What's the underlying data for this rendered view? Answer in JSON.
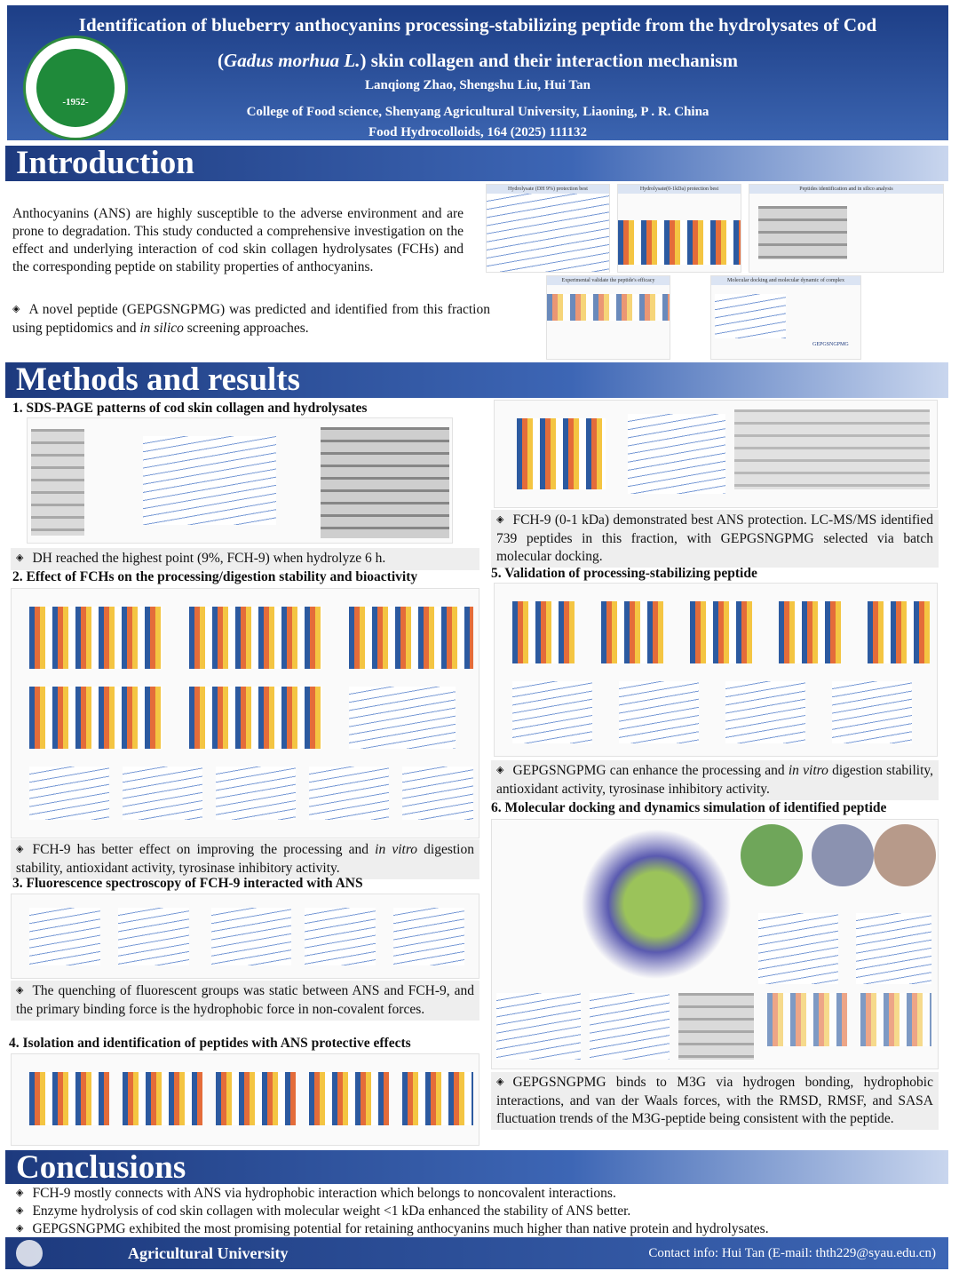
{
  "header": {
    "title_line1": "Identification of blueberry anthocyanins processing-stabilizing peptide from the hydrolysates of Cod",
    "title_line2": [
      {
        "text": "("
      },
      {
        "text": "Gadus morhua L.",
        "italic": true
      },
      {
        "text": ") skin collagen and their interaction mechanism"
      }
    ],
    "authors": "Lanqiong Zhao, Shengshu Liu, Hui Tan",
    "affiliation": "College of Food science, Shenyang Agricultural University, Liaoning, P . R. China",
    "citation": "Food Hydrocolloids, 164 (2025) 111132",
    "logo_year": "-1952-"
  },
  "introduction": {
    "title": "Introduction",
    "paragraph": [
      {
        "text": "Anthocyanins (ANS) are highly susceptible to the adverse environment and are prone to degradation. This study conducted a comprehensive investigation on the effect and underlying interaction of cod skin collagen hydrolysates (FCHs) and the corresponding peptide on stability properties of anthocyanins."
      }
    ],
    "bullet": [
      {
        "text": "A novel peptide (GEPGSNGPMG) was predicted and identified from this fraction using peptidomics and "
      },
      {
        "text": "in silico",
        "italic": true
      },
      {
        "text": " screening approaches."
      }
    ],
    "abstract_panels": [
      "Hydrolysate (DH 9%) protection best",
      "Hydrolysate(0-1kDa) protection best",
      "Peptides identification and in silico analysis",
      "Experimental validate the peptide's efficacy",
      "Molecular docking and molecular dynamic of complex"
    ],
    "peptide_label": "GEPGSNGPMG"
  },
  "methods": {
    "title": "Methods and results",
    "sections": [
      {
        "heading": "1. SDS-PAGE patterns of cod skin collagen and hydrolysates",
        "caption": [
          {
            "text": "DH reached the highest point (9%, FCH-9) when hydrolyze 6 h."
          }
        ]
      },
      {
        "heading": "2. Effect of FCHs on the processing/digestion stability and bioactivity",
        "caption": [
          {
            "text": "FCH-9 has better effect on improving the  processing and "
          },
          {
            "text": "in vitro",
            "italic": true
          },
          {
            "text": " digestion stability, antioxidant activity, tyrosinase inhibitory activity."
          }
        ]
      },
      {
        "heading": "3. Fluorescence spectroscopy of FCH-9 interacted with ANS",
        "caption": [
          {
            "text": "The quenching of fluorescent groups  was static between ANS and FCH-9, and the primary binding force is the hydrophobic force in non-covalent forces."
          }
        ]
      },
      {
        "heading": "4. Isolation and identification of peptides with ANS protective effects",
        "caption": [
          {
            "text": "FCH-9 (0-1 kDa) demonstrated best ANS protection. LC-MS/MS identified 739 peptides in this fraction, with GEPGSNGPMG selected via batch molecular docking."
          }
        ]
      },
      {
        "heading": "5. Validation of processing-stabilizing peptide",
        "caption": [
          {
            "text": "GEPGSNGPMG can enhance the processing and "
          },
          {
            "text": "in vitro",
            "italic": true
          },
          {
            "text": " digestion stability, antioxidant activity, tyrosinase inhibitory activity."
          }
        ]
      },
      {
        "heading": "6. Molecular docking and dynamics simulation of identified peptide",
        "caption": [
          {
            "text": "GEPGSNGPMG binds to M3G via hydrogen bonding, hydrophobic interactions, and van der Waals forces, with the RMSD, RMSF, and SASA fluctuation trends of the M3G-peptide being consistent  with the peptide."
          }
        ]
      }
    ]
  },
  "conclusions": {
    "title": "Conclusions",
    "bullets": [
      "FCH-9 mostly connects with ANS via hydrophobic interaction which belongs to noncovalent interactions.",
      "Enzyme hydrolysis of cod skin collagen with molecular weight <1 kDa enhanced the stability of ANS better.",
      "GEPGSNGPMG exhibited the most promising potential for retaining anthocyanins much higher than native protein and hydrolysates."
    ]
  },
  "footer": {
    "university": "Agricultural University",
    "contact": "Contact info: Hui Tan (E-mail: thth229@syau.edu.cn)"
  }
}
